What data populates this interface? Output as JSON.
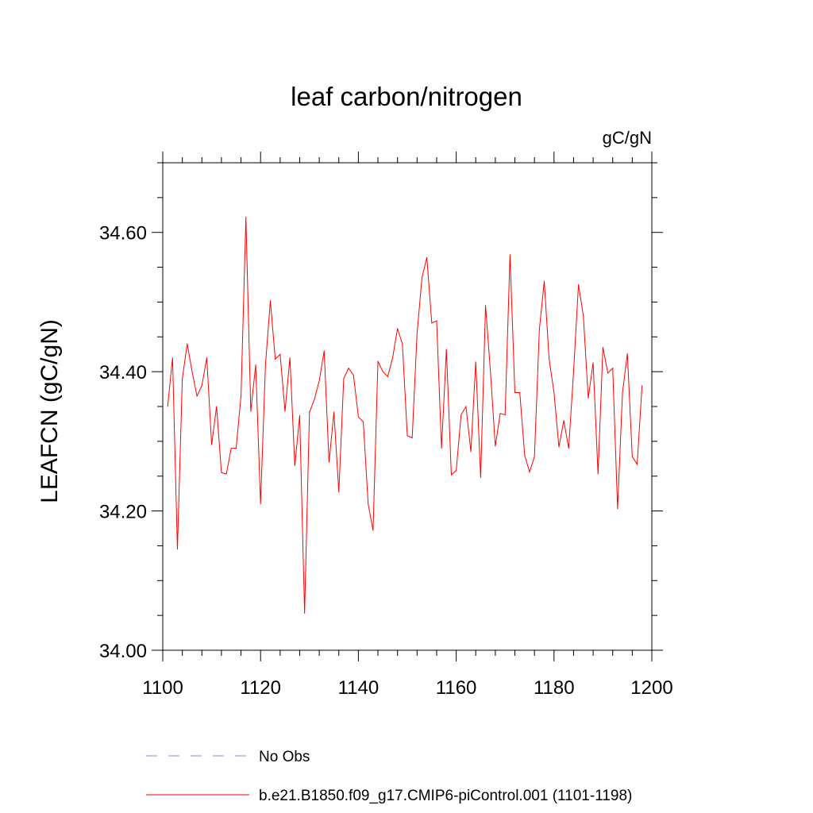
{
  "chart_data": {
    "type": "line",
    "title": "leaf carbon/nitrogen",
    "units": "gC/gN",
    "xlabel": "",
    "ylabel": "LEAFCN  (gC/gN)",
    "xlim": [
      1100,
      1200
    ],
    "ylim": [
      34.0,
      34.7
    ],
    "x_major_ticks": [
      1100,
      1120,
      1140,
      1160,
      1180,
      1200
    ],
    "x_tick_labels": [
      "1100",
      "1120",
      "1140",
      "1160",
      "1180",
      "1200"
    ],
    "y_major_ticks": [
      34.0,
      34.2,
      34.4,
      34.6
    ],
    "y_tick_labels": [
      "34.00",
      "34.20",
      "34.40",
      "34.60"
    ],
    "y_minor_step": 0.05,
    "x_minor_step": 4,
    "grid": false,
    "legend_position": "bottom",
    "series": [
      {
        "name": "No Obs",
        "color": "#8888cc",
        "dashed": true,
        "x": [],
        "values": []
      },
      {
        "name": "b.e21.B1850.f09_g17.CMIP6-piControl.001 (1101-1198)",
        "color": "#ff0000",
        "dashed": false,
        "x": [
          1101,
          1102,
          1103,
          1104,
          1105,
          1106,
          1107,
          1108,
          1109,
          1110,
          1111,
          1112,
          1113,
          1114,
          1115,
          1116,
          1117,
          1118,
          1119,
          1120,
          1121,
          1122,
          1123,
          1124,
          1125,
          1126,
          1127,
          1128,
          1129,
          1130,
          1131,
          1132,
          1133,
          1134,
          1135,
          1136,
          1137,
          1138,
          1139,
          1140,
          1141,
          1142,
          1143,
          1144,
          1145,
          1146,
          1147,
          1148,
          1149,
          1150,
          1151,
          1152,
          1153,
          1154,
          1155,
          1156,
          1157,
          1158,
          1159,
          1160,
          1161,
          1162,
          1163,
          1164,
          1165,
          1166,
          1167,
          1168,
          1169,
          1170,
          1171,
          1172,
          1173,
          1174,
          1175,
          1176,
          1177,
          1178,
          1179,
          1180,
          1181,
          1182,
          1183,
          1184,
          1185,
          1186,
          1187,
          1188,
          1189,
          1190,
          1191,
          1192,
          1193,
          1194,
          1195,
          1196,
          1197,
          1198
        ],
        "values": [
          34.35,
          34.42,
          34.145,
          34.39,
          34.44,
          34.4,
          34.365,
          34.38,
          34.42,
          34.295,
          34.35,
          34.255,
          34.253,
          34.29,
          34.29,
          34.365,
          34.622,
          34.343,
          34.41,
          34.21,
          34.41,
          34.502,
          34.418,
          34.425,
          34.343,
          34.42,
          34.265,
          34.337,
          34.053,
          34.342,
          34.36,
          34.387,
          34.43,
          34.27,
          34.342,
          34.227,
          34.39,
          34.405,
          34.395,
          34.335,
          34.328,
          34.21,
          34.172,
          34.415,
          34.4,
          34.393,
          34.42,
          34.462,
          34.44,
          34.308,
          34.305,
          34.455,
          34.535,
          34.564,
          34.47,
          34.473,
          34.29,
          34.432,
          34.252,
          34.258,
          34.338,
          34.35,
          34.285,
          34.414,
          34.248,
          34.495,
          34.4,
          34.293,
          34.34,
          34.338,
          34.568,
          34.37,
          34.37,
          34.28,
          34.256,
          34.278,
          34.46,
          34.53,
          34.418,
          34.37,
          34.292,
          34.33,
          34.29,
          34.4,
          34.525,
          34.48,
          34.362,
          34.413,
          34.253,
          34.435,
          34.398,
          34.405,
          34.203,
          34.37,
          34.426,
          34.278,
          34.267,
          34.38
        ]
      }
    ]
  }
}
